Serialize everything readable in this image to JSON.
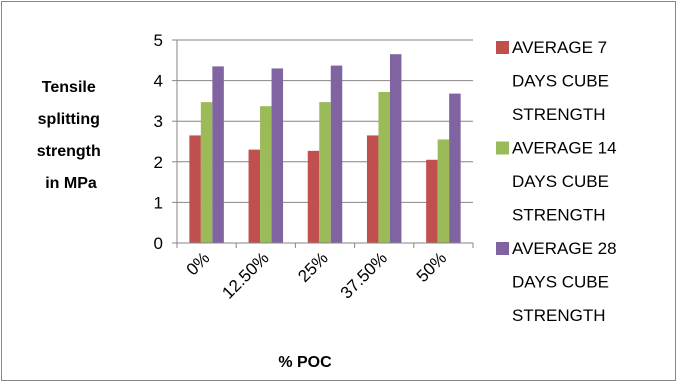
{
  "chart_data": {
    "type": "bar",
    "categories": [
      "0%",
      "12.50%",
      "25%",
      "37.50%",
      "50%"
    ],
    "series": [
      {
        "name": "AVERAGE 7 DAYS CUBE STRENGTH",
        "name_lines": [
          "AVERAGE 7",
          "DAYS CUBE",
          "STRENGTH"
        ],
        "color": "#c0504d",
        "values": [
          2.65,
          2.3,
          2.27,
          2.65,
          2.05
        ]
      },
      {
        "name": "AVERAGE 14 DAYS CUBE STRENGTH",
        "name_lines": [
          "AVERAGE 14",
          "DAYS CUBE",
          "STRENGTH"
        ],
        "color": "#9bbb59",
        "values": [
          3.47,
          3.37,
          3.47,
          3.72,
          2.55
        ]
      },
      {
        "name": "AVERAGE 28 DAYS CUBE STRENGTH",
        "name_lines": [
          "AVERAGE 28",
          "DAYS CUBE",
          "STRENGTH"
        ],
        "color": "#8064a2",
        "values": [
          4.35,
          4.3,
          4.37,
          4.65,
          3.68
        ]
      }
    ],
    "ylabel": "Tensile splitting strength in MPa",
    "ylabel_lines": [
      "Tensile",
      "splitting",
      "strength",
      "in MPa"
    ],
    "xlabel": "% POC",
    "ylim": [
      0,
      5
    ],
    "yticks": [
      "0",
      "1",
      "2",
      "3",
      "4",
      "5"
    ],
    "grid": true,
    "legend_position": "right"
  }
}
